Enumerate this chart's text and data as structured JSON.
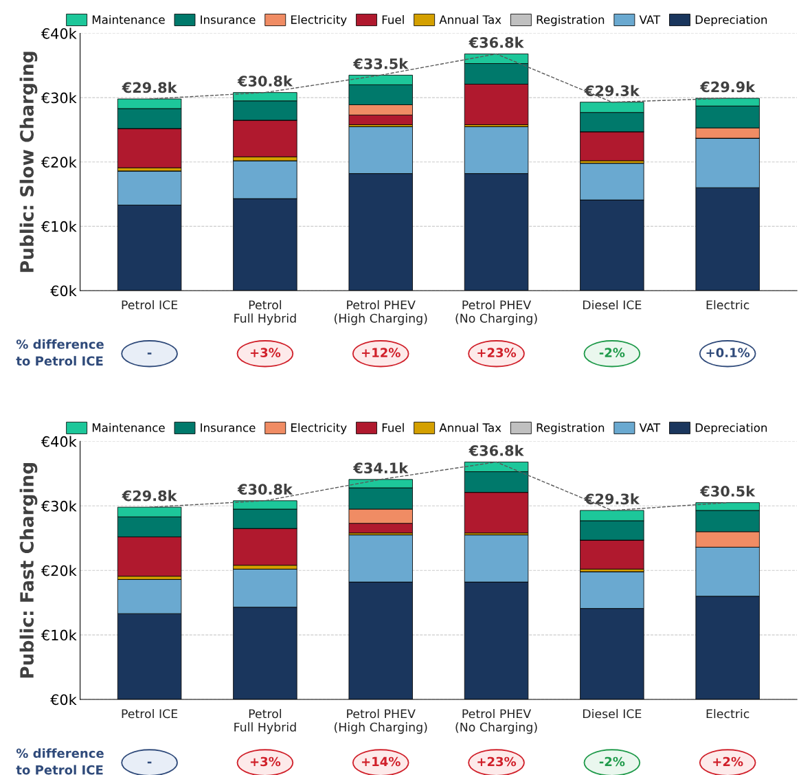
{
  "chart_data": [
    {
      "type": "bar",
      "stacked": true,
      "ylabel": "Public: Slow Charging",
      "categories": [
        "Petrol ICE",
        "Petrol\nFull Hybrid",
        "Petrol PHEV\n(High Charging)",
        "Petrol PHEV\n(No Charging)",
        "Diesel ICE",
        "Electric"
      ],
      "series": [
        {
          "name": "Depreciation",
          "color": "#1a365d",
          "values": [
            13.3,
            14.3,
            18.2,
            18.2,
            14.1,
            16.0
          ]
        },
        {
          "name": "VAT",
          "color": "#6aa9d0",
          "values": [
            5.3,
            5.9,
            7.3,
            7.3,
            5.7,
            7.7
          ]
        },
        {
          "name": "Registration",
          "color": "#c0c0c0",
          "values": [
            0,
            0,
            0,
            0,
            0,
            0
          ]
        },
        {
          "name": "Annual Tax",
          "color": "#d4a000",
          "values": [
            0.5,
            0.6,
            0.3,
            0.3,
            0.4,
            0
          ]
        },
        {
          "name": "Fuel",
          "color": "#b0192e",
          "values": [
            6.1,
            5.7,
            1.5,
            6.3,
            4.5,
            0
          ]
        },
        {
          "name": "Electricity",
          "color": "#f08c64",
          "values": [
            0,
            0,
            1.6,
            0,
            0,
            1.6
          ]
        },
        {
          "name": "Insurance",
          "color": "#00796b",
          "values": [
            3.1,
            3.0,
            3.1,
            3.2,
            3.0,
            3.4
          ]
        },
        {
          "name": "Maintenance",
          "color": "#1dc79a",
          "values": [
            1.5,
            1.3,
            1.5,
            1.5,
            1.6,
            1.2
          ]
        },
        {
          "type": "line",
          "color": "#595959",
          "line_style": "dashed",
          "values": [
            29.8,
            30.8,
            33.5,
            36.8,
            29.3,
            29.9
          ]
        }
      ],
      "totals": [
        "€29.8k",
        "€30.8k",
        "€33.5k",
        "€36.8k",
        "€29.3k",
        "€29.9k"
      ],
      "ylim": [
        0,
        40
      ],
      "yticks": [
        {
          "value": 0,
          "label": "€0k"
        },
        {
          "value": 10,
          "label": "€10k"
        },
        {
          "value": 20,
          "label": "€20k"
        },
        {
          "value": 30,
          "label": "€30k"
        },
        {
          "value": 40,
          "label": "€40k"
        }
      ],
      "grid": "y",
      "legend": "top",
      "annotations": [
        "% difference\nto Petrol ICE",
        "-",
        "+3%",
        "+12%",
        "+23%",
        "-2%",
        "+0.1%"
      ]
    },
    {
      "type": "bar",
      "stacked": true,
      "ylabel": "Public: Fast Charging",
      "categories": [
        "Petrol ICE",
        "Petrol\nFull Hybrid",
        "Petrol PHEV\n(High Charging)",
        "Petrol PHEV\n(No Charging)",
        "Diesel ICE",
        "Electric"
      ],
      "series": [
        {
          "name": "Depreciation",
          "color": "#1a365d",
          "values": [
            13.3,
            14.3,
            18.2,
            18.2,
            14.1,
            16.0
          ]
        },
        {
          "name": "VAT",
          "color": "#6aa9d0",
          "values": [
            5.3,
            5.9,
            7.3,
            7.3,
            5.7,
            7.6
          ]
        },
        {
          "name": "Registration",
          "color": "#c0c0c0",
          "values": [
            0,
            0,
            0,
            0,
            0,
            0
          ]
        },
        {
          "name": "Annual Tax",
          "color": "#d4a000",
          "values": [
            0.5,
            0.6,
            0.3,
            0.3,
            0.4,
            0
          ]
        },
        {
          "name": "Fuel",
          "color": "#b0192e",
          "values": [
            6.1,
            5.7,
            1.5,
            6.3,
            4.5,
            0
          ]
        },
        {
          "name": "Electricity",
          "color": "#f08c64",
          "values": [
            0,
            0,
            2.2,
            0,
            0,
            2.4
          ]
        },
        {
          "name": "Insurance",
          "color": "#00796b",
          "values": [
            3.1,
            3.0,
            3.3,
            3.2,
            3.0,
            3.3
          ]
        },
        {
          "name": "Maintenance",
          "color": "#1dc79a",
          "values": [
            1.5,
            1.3,
            1.3,
            1.5,
            1.6,
            1.2
          ]
        },
        {
          "type": "line",
          "color": "#595959",
          "line_style": "dashed",
          "values": [
            29.8,
            30.8,
            34.1,
            36.8,
            29.3,
            30.5
          ]
        }
      ],
      "totals": [
        "€29.8k",
        "€30.8k",
        "€34.1k",
        "€36.8k",
        "€29.3k",
        "€30.5k"
      ],
      "ylim": [
        0,
        40
      ],
      "yticks": [
        {
          "value": 0,
          "label": "€0k"
        },
        {
          "value": 10,
          "label": "€10k"
        },
        {
          "value": 20,
          "label": "€20k"
        },
        {
          "value": 30,
          "label": "€30k"
        },
        {
          "value": 40,
          "label": "€40k"
        }
      ],
      "grid": "y",
      "legend": "top",
      "annotations": [
        "% difference\nto Petrol ICE",
        "-",
        "+3%",
        "+14%",
        "+23%",
        "-2%",
        "+2%"
      ]
    }
  ]
}
